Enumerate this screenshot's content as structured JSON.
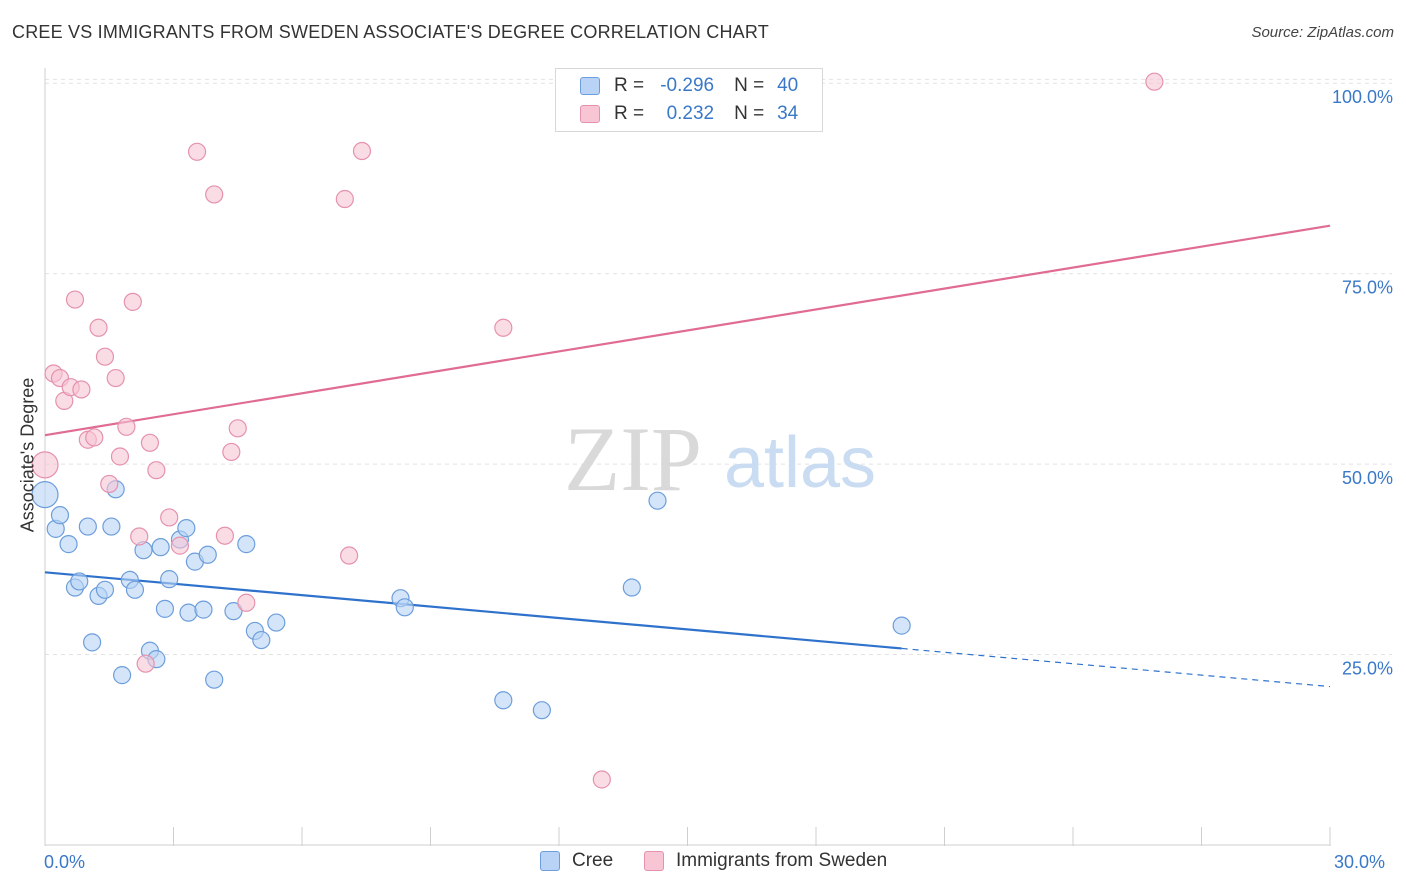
{
  "title": "CREE VS IMMIGRANTS FROM SWEDEN ASSOCIATE'S DEGREE CORRELATION CHART",
  "source": "Source: ZipAtlas.com",
  "watermark": {
    "zip": "ZIP",
    "atlas": "atlas"
  },
  "legend": {
    "rows": [
      {
        "r_label": "R =",
        "r_value": "-0.296",
        "n_label": "N =",
        "n_value": "40"
      },
      {
        "r_label": "R =",
        "r_value": "0.232",
        "n_label": "N =",
        "n_value": "34"
      }
    ]
  },
  "colors": {
    "blue_fill": "#b8d3f5",
    "blue_stroke": "#6d9edb",
    "blue_line": "#2f72cc",
    "pink_fill": "#f7c5d3",
    "pink_stroke": "#e592ad",
    "pink_line": "#e06b93",
    "axis_text": "#3a78c8",
    "grid": "#e2e2e2"
  },
  "chart_data": {
    "type": "scatter",
    "title": "CREE VS IMMIGRANTS FROM SWEDEN ASSOCIATE'S DEGREE CORRELATION CHART",
    "xlabel": "",
    "ylabel": "Associate's Degree",
    "xlim": [
      0,
      30
    ],
    "ylim": [
      0,
      102
    ],
    "x_tick_labels": [
      "0.0%",
      "30.0%"
    ],
    "y_ticks": [
      25,
      50,
      75,
      100
    ],
    "y_tick_labels": [
      "25.0%",
      "50.0%",
      "75.0%",
      "100.0%"
    ],
    "grid": true,
    "legend_position": "top-center",
    "series": [
      {
        "name": "Cree",
        "r": -0.296,
        "n": 40,
        "trend": {
          "x0": 0,
          "y0": 35.8,
          "x1": 20.0,
          "y1": 25.8,
          "dash_to_x": 30,
          "dash_to_y": 20.8
        },
        "points": [
          {
            "x": 0.0,
            "y": 46.0,
            "big": true
          },
          {
            "x": 0.25,
            "y": 41.5
          },
          {
            "x": 0.35,
            "y": 43.3
          },
          {
            "x": 0.55,
            "y": 39.5
          },
          {
            "x": 0.7,
            "y": 33.8
          },
          {
            "x": 0.8,
            "y": 34.6
          },
          {
            "x": 1.0,
            "y": 41.8
          },
          {
            "x": 1.1,
            "y": 26.6
          },
          {
            "x": 1.25,
            "y": 32.7
          },
          {
            "x": 1.4,
            "y": 33.5
          },
          {
            "x": 1.55,
            "y": 41.8
          },
          {
            "x": 1.65,
            "y": 46.7
          },
          {
            "x": 1.8,
            "y": 22.3
          },
          {
            "x": 1.98,
            "y": 34.8
          },
          {
            "x": 2.1,
            "y": 33.5
          },
          {
            "x": 2.3,
            "y": 38.7
          },
          {
            "x": 2.45,
            "y": 25.5
          },
          {
            "x": 2.6,
            "y": 24.4
          },
          {
            "x": 2.7,
            "y": 39.1
          },
          {
            "x": 2.8,
            "y": 31.0
          },
          {
            "x": 2.9,
            "y": 34.9
          },
          {
            "x": 3.15,
            "y": 40.1
          },
          {
            "x": 3.3,
            "y": 41.6
          },
          {
            "x": 3.35,
            "y": 30.5
          },
          {
            "x": 3.5,
            "y": 37.2
          },
          {
            "x": 3.7,
            "y": 30.9
          },
          {
            "x": 3.8,
            "y": 38.1
          },
          {
            "x": 3.95,
            "y": 21.7
          },
          {
            "x": 4.4,
            "y": 30.7
          },
          {
            "x": 4.7,
            "y": 39.5
          },
          {
            "x": 4.9,
            "y": 28.1
          },
          {
            "x": 5.05,
            "y": 26.9
          },
          {
            "x": 5.4,
            "y": 29.2
          },
          {
            "x": 8.3,
            "y": 32.4
          },
          {
            "x": 8.4,
            "y": 31.2
          },
          {
            "x": 10.7,
            "y": 19.0
          },
          {
            "x": 11.6,
            "y": 17.7
          },
          {
            "x": 13.7,
            "y": 33.8
          },
          {
            "x": 14.3,
            "y": 45.2
          },
          {
            "x": 20.0,
            "y": 28.8
          }
        ]
      },
      {
        "name": "Immigrants from Sweden",
        "r": 0.232,
        "n": 34,
        "trend": {
          "x0": 0,
          "y0": 53.8,
          "x1": 30,
          "y1": 81.3
        },
        "points": [
          {
            "x": 0.0,
            "y": 49.9,
            "big": true
          },
          {
            "x": 0.2,
            "y": 61.9
          },
          {
            "x": 0.35,
            "y": 61.3
          },
          {
            "x": 0.45,
            "y": 58.3
          },
          {
            "x": 0.6,
            "y": 60.1
          },
          {
            "x": 0.7,
            "y": 71.6
          },
          {
            "x": 0.85,
            "y": 59.8
          },
          {
            "x": 1.0,
            "y": 53.2
          },
          {
            "x": 1.15,
            "y": 53.5
          },
          {
            "x": 1.25,
            "y": 67.9
          },
          {
            "x": 1.4,
            "y": 64.1
          },
          {
            "x": 1.5,
            "y": 47.4
          },
          {
            "x": 1.65,
            "y": 61.3
          },
          {
            "x": 1.75,
            "y": 51.0
          },
          {
            "x": 1.9,
            "y": 54.9
          },
          {
            "x": 2.05,
            "y": 71.3
          },
          {
            "x": 2.2,
            "y": 40.5
          },
          {
            "x": 2.35,
            "y": 23.8
          },
          {
            "x": 2.45,
            "y": 52.8
          },
          {
            "x": 2.6,
            "y": 49.2
          },
          {
            "x": 2.9,
            "y": 43.0
          },
          {
            "x": 3.15,
            "y": 39.3
          },
          {
            "x": 3.55,
            "y": 91.0
          },
          {
            "x": 3.95,
            "y": 85.4
          },
          {
            "x": 4.2,
            "y": 40.6
          },
          {
            "x": 4.35,
            "y": 51.6
          },
          {
            "x": 4.5,
            "y": 54.7
          },
          {
            "x": 4.7,
            "y": 31.8
          },
          {
            "x": 7.0,
            "y": 84.8
          },
          {
            "x": 7.1,
            "y": 38.0
          },
          {
            "x": 7.4,
            "y": 91.1
          },
          {
            "x": 10.7,
            "y": 67.9
          },
          {
            "x": 13.0,
            "y": 8.6
          },
          {
            "x": 25.9,
            "y": 100.2
          }
        ]
      }
    ]
  }
}
